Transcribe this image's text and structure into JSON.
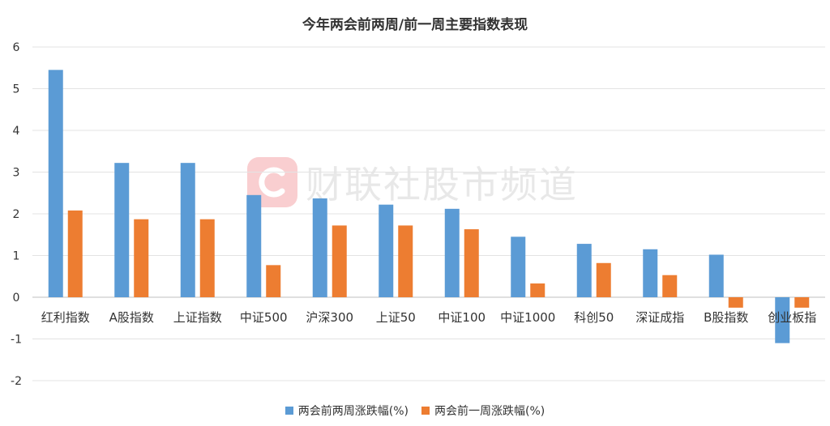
{
  "chart_data": {
    "type": "bar",
    "title": "今年两会前两周/前一周主要指数表现",
    "categories": [
      "红利指数",
      "A股指数",
      "上证指数",
      "中证500",
      "沪深300",
      "上证50",
      "中证100",
      "中证1000",
      "科创50",
      "深证成指",
      "B股指数",
      "创业板指"
    ],
    "series": [
      {
        "name": "两会前两周涨跌幅(%)",
        "color": "#5b9bd5",
        "values": [
          5.45,
          3.22,
          3.22,
          2.45,
          2.37,
          2.22,
          2.12,
          1.45,
          1.28,
          1.15,
          1.02,
          -1.1
        ]
      },
      {
        "name": "两会前一周涨跌幅(%)",
        "color": "#ed7d31",
        "values": [
          2.08,
          1.87,
          1.87,
          0.77,
          1.72,
          1.72,
          1.63,
          0.33,
          0.82,
          0.53,
          -0.25,
          -0.25
        ]
      }
    ],
    "ylim": [
      -2,
      6
    ],
    "yticks": [
      -2,
      -1,
      0,
      1,
      2,
      3,
      4,
      5,
      6
    ],
    "grid": true,
    "legend_position": "bottom"
  },
  "watermark": {
    "logo_icon": "cls-c-logo-icon",
    "text": "财联社股市频道"
  }
}
